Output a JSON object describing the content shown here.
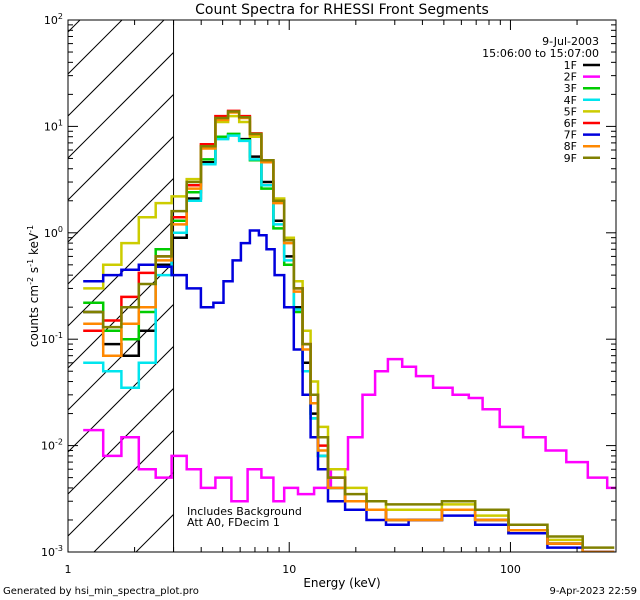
{
  "chart_data": {
    "type": "line",
    "style": "step",
    "title": "Count Spectra for RHESSI Front Segments",
    "xlabel": "Energy (keV)",
    "ylabel": "counts cm^-2 s^-1 keV^-1",
    "ylabel_base": "counts cm",
    "ylabel_sup1": "-2",
    "ylabel_mid1": "s",
    "ylabel_sup2": "-1",
    "ylabel_mid2": "keV",
    "ylabel_sup3": "-1",
    "xscale": "log",
    "yscale": "log",
    "xlim": [
      1,
      300
    ],
    "ylim": [
      0.001,
      100
    ],
    "x_ticks": [
      {
        "label": "1",
        "value": 1
      },
      {
        "label": "10",
        "value": 10
      },
      {
        "label": "100",
        "value": 100
      }
    ],
    "y_ticks": [
      {
        "base": "10",
        "exp": "-3",
        "value": 0.001
      },
      {
        "base": "10",
        "exp": "-2",
        "value": 0.01
      },
      {
        "base": "10",
        "exp": "-1",
        "value": 0.1
      },
      {
        "base": "10",
        "exp": "0",
        "value": 1
      },
      {
        "base": "10",
        "exp": "1",
        "value": 10
      },
      {
        "base": "10",
        "exp": "2",
        "value": 100
      }
    ],
    "date": "9-Jul-2003",
    "time_range": "15:06:00 to 15:07:00",
    "annotation_line1": "Includes Background",
    "annotation_line2": "Att A0, FDecim 1",
    "hatched_region_xmax_kev": 3,
    "series": [
      {
        "name": "1F",
        "color": "#000000",
        "points": [
          [
            1.3,
            0.18
          ],
          [
            1.6,
            0.09
          ],
          [
            1.9,
            0.07
          ],
          [
            2.3,
            0.12
          ],
          [
            2.7,
            0.5
          ],
          [
            3.2,
            0.9
          ],
          [
            3.7,
            2.1
          ],
          [
            4.3,
            4.6
          ],
          [
            5.0,
            7.8
          ],
          [
            5.6,
            8.4
          ],
          [
            6.3,
            7.6
          ],
          [
            7.0,
            5.2
          ],
          [
            8.0,
            3.0
          ],
          [
            9.0,
            1.3
          ],
          [
            10.0,
            0.6
          ],
          [
            11.0,
            0.2
          ],
          [
            12.0,
            0.06
          ],
          [
            13.0,
            0.02
          ],
          [
            14.0,
            0.008
          ],
          [
            16.0,
            0.004
          ],
          [
            20.0,
            0.003
          ],
          [
            25.0,
            0.0025
          ],
          [
            30.0,
            0.002
          ],
          [
            40.0,
            0.002
          ],
          [
            60.0,
            0.0025
          ],
          [
            80.0,
            0.002
          ],
          [
            120.0,
            0.0015
          ],
          [
            180.0,
            0.0012
          ],
          [
            250.0,
            0.001
          ]
        ]
      },
      {
        "name": "2F",
        "color": "#ff00ff",
        "points": [
          [
            1.3,
            0.014
          ],
          [
            1.6,
            0.008
          ],
          [
            1.9,
            0.012
          ],
          [
            2.3,
            0.006
          ],
          [
            2.7,
            0.005
          ],
          [
            3.2,
            0.008
          ],
          [
            3.7,
            0.006
          ],
          [
            4.3,
            0.004
          ],
          [
            5.0,
            0.005
          ],
          [
            6.0,
            0.003
          ],
          [
            7.0,
            0.006
          ],
          [
            8.0,
            0.005
          ],
          [
            9.0,
            0.003
          ],
          [
            10.0,
            0.004
          ],
          [
            12.0,
            0.0035
          ],
          [
            14.0,
            0.004
          ],
          [
            17.0,
            0.006
          ],
          [
            20.0,
            0.012
          ],
          [
            23.0,
            0.03
          ],
          [
            26.0,
            0.05
          ],
          [
            30.0,
            0.065
          ],
          [
            35.0,
            0.055
          ],
          [
            40.0,
            0.045
          ],
          [
            50.0,
            0.035
          ],
          [
            60.0,
            0.03
          ],
          [
            70.0,
            0.028
          ],
          [
            80.0,
            0.022
          ],
          [
            100.0,
            0.015
          ],
          [
            130.0,
            0.012
          ],
          [
            160.0,
            0.009
          ],
          [
            200.0,
            0.007
          ],
          [
            250.0,
            0.005
          ],
          [
            300.0,
            0.004
          ]
        ]
      },
      {
        "name": "3F",
        "color": "#00cc00",
        "points": [
          [
            1.3,
            0.22
          ],
          [
            1.6,
            0.12
          ],
          [
            1.9,
            0.1
          ],
          [
            2.3,
            0.18
          ],
          [
            2.7,
            0.7
          ],
          [
            3.2,
            1.3
          ],
          [
            3.7,
            2.4
          ],
          [
            4.3,
            4.9
          ],
          [
            5.0,
            8.0
          ],
          [
            5.6,
            8.5
          ],
          [
            6.3,
            7.4
          ],
          [
            7.0,
            4.8
          ],
          [
            8.0,
            2.6
          ],
          [
            9.0,
            1.1
          ],
          [
            10.0,
            0.5
          ],
          [
            11.0,
            0.18
          ],
          [
            12.0,
            0.05
          ],
          [
            13.0,
            0.018
          ],
          [
            14.0,
            0.008
          ],
          [
            16.0,
            0.004
          ],
          [
            20.0,
            0.003
          ],
          [
            25.0,
            0.0025
          ],
          [
            30.0,
            0.002
          ],
          [
            40.0,
            0.002
          ],
          [
            60.0,
            0.0025
          ],
          [
            80.0,
            0.002
          ],
          [
            120.0,
            0.0016
          ],
          [
            180.0,
            0.0012
          ],
          [
            250.0,
            0.001
          ]
        ]
      },
      {
        "name": "4F",
        "color": "#00e5ee",
        "points": [
          [
            1.3,
            0.06
          ],
          [
            1.6,
            0.05
          ],
          [
            1.9,
            0.035
          ],
          [
            2.3,
            0.06
          ],
          [
            2.7,
            0.4
          ],
          [
            3.2,
            1.0
          ],
          [
            3.7,
            2.0
          ],
          [
            4.3,
            4.4
          ],
          [
            5.0,
            7.6
          ],
          [
            5.6,
            8.2
          ],
          [
            6.3,
            7.3
          ],
          [
            7.0,
            4.9
          ],
          [
            8.0,
            2.8
          ],
          [
            9.0,
            1.2
          ],
          [
            10.0,
            0.55
          ],
          [
            11.0,
            0.19
          ],
          [
            12.0,
            0.05
          ],
          [
            13.0,
            0.018
          ],
          [
            14.0,
            0.008
          ],
          [
            16.0,
            0.004
          ],
          [
            20.0,
            0.003
          ],
          [
            25.0,
            0.0025
          ],
          [
            30.0,
            0.002
          ],
          [
            40.0,
            0.002
          ],
          [
            60.0,
            0.0025
          ],
          [
            80.0,
            0.002
          ],
          [
            120.0,
            0.0016
          ],
          [
            180.0,
            0.0012
          ],
          [
            250.0,
            0.001
          ]
        ]
      },
      {
        "name": "5F",
        "color": "#cccc00",
        "points": [
          [
            1.3,
            0.3
          ],
          [
            1.6,
            0.5
          ],
          [
            1.9,
            0.8
          ],
          [
            2.3,
            1.4
          ],
          [
            2.7,
            1.9
          ],
          [
            3.2,
            2.2
          ],
          [
            3.7,
            3.2
          ],
          [
            4.3,
            6.6
          ],
          [
            5.0,
            11.0
          ],
          [
            5.6,
            12.5
          ],
          [
            6.3,
            11.0
          ],
          [
            7.0,
            8.0
          ],
          [
            8.0,
            4.6
          ],
          [
            9.0,
            2.1
          ],
          [
            10.0,
            0.9
          ],
          [
            11.0,
            0.35
          ],
          [
            12.0,
            0.12
          ],
          [
            13.0,
            0.04
          ],
          [
            14.0,
            0.015
          ],
          [
            16.0,
            0.006
          ],
          [
            20.0,
            0.004
          ],
          [
            25.0,
            0.003
          ],
          [
            30.0,
            0.0025
          ],
          [
            40.0,
            0.0025
          ],
          [
            60.0,
            0.0028
          ],
          [
            80.0,
            0.0022
          ],
          [
            120.0,
            0.0018
          ],
          [
            180.0,
            0.0013
          ],
          [
            250.0,
            0.001
          ]
        ]
      },
      {
        "name": "6F",
        "color": "#ff0000",
        "points": [
          [
            1.3,
            0.12
          ],
          [
            1.6,
            0.15
          ],
          [
            1.9,
            0.25
          ],
          [
            2.3,
            0.42
          ],
          [
            2.7,
            0.6
          ],
          [
            3.2,
            1.4
          ],
          [
            3.7,
            2.8
          ],
          [
            4.3,
            6.8
          ],
          [
            5.0,
            12.5
          ],
          [
            5.6,
            14.0
          ],
          [
            6.3,
            12.5
          ],
          [
            7.0,
            8.6
          ],
          [
            8.0,
            4.8
          ],
          [
            9.0,
            2.0
          ],
          [
            10.0,
            0.85
          ],
          [
            11.0,
            0.3
          ],
          [
            12.0,
            0.09
          ],
          [
            13.0,
            0.03
          ],
          [
            14.0,
            0.01
          ],
          [
            16.0,
            0.005
          ],
          [
            20.0,
            0.003
          ],
          [
            25.0,
            0.0025
          ],
          [
            30.0,
            0.002
          ],
          [
            40.0,
            0.002
          ],
          [
            60.0,
            0.0025
          ],
          [
            80.0,
            0.002
          ],
          [
            120.0,
            0.0016
          ],
          [
            180.0,
            0.0012
          ],
          [
            250.0,
            0.001
          ]
        ]
      },
      {
        "name": "7F",
        "color": "#0000dd",
        "points": [
          [
            1.3,
            0.35
          ],
          [
            1.6,
            0.4
          ],
          [
            1.9,
            0.45
          ],
          [
            2.3,
            0.5
          ],
          [
            2.7,
            0.48
          ],
          [
            3.2,
            0.4
          ],
          [
            3.7,
            0.3
          ],
          [
            4.3,
            0.2
          ],
          [
            4.8,
            0.22
          ],
          [
            5.3,
            0.35
          ],
          [
            5.8,
            0.55
          ],
          [
            6.3,
            0.8
          ],
          [
            7.0,
            1.05
          ],
          [
            7.6,
            0.95
          ],
          [
            8.2,
            0.7
          ],
          [
            9.0,
            0.4
          ],
          [
            10.0,
            0.2
          ],
          [
            11.0,
            0.08
          ],
          [
            12.0,
            0.03
          ],
          [
            13.0,
            0.012
          ],
          [
            14.0,
            0.006
          ],
          [
            16.0,
            0.003
          ],
          [
            20.0,
            0.0025
          ],
          [
            25.0,
            0.002
          ],
          [
            30.0,
            0.0018
          ],
          [
            40.0,
            0.002
          ],
          [
            60.0,
            0.0022
          ],
          [
            80.0,
            0.0018
          ],
          [
            120.0,
            0.0015
          ],
          [
            180.0,
            0.0011
          ],
          [
            250.0,
            0.001
          ]
        ]
      },
      {
        "name": "8F",
        "color": "#ff8800",
        "points": [
          [
            1.3,
            0.14
          ],
          [
            1.6,
            0.07
          ],
          [
            1.9,
            0.14
          ],
          [
            2.3,
            0.2
          ],
          [
            2.7,
            0.55
          ],
          [
            3.2,
            1.2
          ],
          [
            3.7,
            2.6
          ],
          [
            4.3,
            6.2
          ],
          [
            5.0,
            11.5
          ],
          [
            5.6,
            13.5
          ],
          [
            6.3,
            12.0
          ],
          [
            7.0,
            8.4
          ],
          [
            8.0,
            4.6
          ],
          [
            9.0,
            1.9
          ],
          [
            10.0,
            0.8
          ],
          [
            11.0,
            0.28
          ],
          [
            12.0,
            0.08
          ],
          [
            13.0,
            0.025
          ],
          [
            14.0,
            0.009
          ],
          [
            16.0,
            0.004
          ],
          [
            20.0,
            0.003
          ],
          [
            25.0,
            0.0025
          ],
          [
            30.0,
            0.002
          ],
          [
            40.0,
            0.002
          ],
          [
            60.0,
            0.0025
          ],
          [
            80.0,
            0.002
          ],
          [
            120.0,
            0.0016
          ],
          [
            180.0,
            0.0012
          ],
          [
            250.0,
            0.001
          ]
        ]
      },
      {
        "name": "9F",
        "color": "#808000",
        "points": [
          [
            1.3,
            0.18
          ],
          [
            1.6,
            0.13
          ],
          [
            1.9,
            0.2
          ],
          [
            2.3,
            0.33
          ],
          [
            2.7,
            0.6
          ],
          [
            3.2,
            1.6
          ],
          [
            3.7,
            3.0
          ],
          [
            4.3,
            6.5
          ],
          [
            5.0,
            12.0
          ],
          [
            5.6,
            13.8
          ],
          [
            6.3,
            12.2
          ],
          [
            7.0,
            8.5
          ],
          [
            8.0,
            4.8
          ],
          [
            9.0,
            2.0
          ],
          [
            10.0,
            0.85
          ],
          [
            11.0,
            0.3
          ],
          [
            12.0,
            0.09
          ],
          [
            13.0,
            0.03
          ],
          [
            14.0,
            0.012
          ],
          [
            16.0,
            0.005
          ],
          [
            20.0,
            0.0035
          ],
          [
            25.0,
            0.003
          ],
          [
            30.0,
            0.0028
          ],
          [
            40.0,
            0.0028
          ],
          [
            60.0,
            0.003
          ],
          [
            80.0,
            0.0025
          ],
          [
            120.0,
            0.0018
          ],
          [
            180.0,
            0.0014
          ],
          [
            250.0,
            0.0011
          ]
        ]
      }
    ]
  },
  "footer": {
    "generated_by": "Generated by hsi_min_spectra_plot.pro",
    "timestamp": "9-Apr-2023 22:59"
  }
}
